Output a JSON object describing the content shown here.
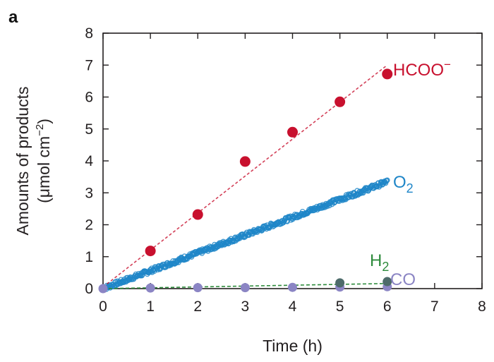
{
  "panel_label": "a",
  "chart_data": {
    "type": "scatter",
    "xlabel": "Time (h)",
    "ylabel_line1": "Amounts of products",
    "ylabel_line2_prefix": "(μmol cm",
    "ylabel_line2_exp": "−2",
    "ylabel_line2_suffix": ")",
    "xlim": [
      0,
      8
    ],
    "ylim": [
      0,
      8
    ],
    "x_ticks": [
      0,
      1,
      2,
      3,
      4,
      5,
      6,
      7,
      8
    ],
    "y_ticks": [
      0,
      1,
      2,
      3,
      4,
      5,
      6,
      7,
      8
    ],
    "x_tick_labels": [
      "0",
      "1",
      "2",
      "3",
      "4",
      "5",
      "6",
      "7",
      "8"
    ],
    "y_tick_labels": [
      "0",
      "1",
      "2",
      "3",
      "4",
      "5",
      "6",
      "7",
      "8"
    ],
    "grid": false,
    "series": [
      {
        "name": "HCOO⁻",
        "label_main": "HCOO",
        "label_sup": "−",
        "color": "#c8102e",
        "marker": "circle",
        "points": [
          {
            "x": 1,
            "y": 1.18
          },
          {
            "x": 2,
            "y": 2.32
          },
          {
            "x": 3,
            "y": 3.98
          },
          {
            "x": 4,
            "y": 4.9
          },
          {
            "x": 5,
            "y": 5.85
          },
          {
            "x": 6,
            "y": 6.72
          }
        ],
        "fit": [
          [
            0,
            0.05
          ],
          [
            6,
            7.0
          ]
        ]
      },
      {
        "name": "O₂",
        "label_main": "O",
        "label_sub": "2",
        "color": "#1f86c8",
        "marker": "continuous",
        "start": [
          0,
          0
        ],
        "end": [
          6,
          3.35
        ]
      },
      {
        "name": "H₂",
        "label_main": "H",
        "label_sub": "2",
        "color": "#2e8b3c",
        "marker_color": "#4d6b6a",
        "marker": "circle",
        "points": [
          {
            "x": 5,
            "y": 0.18
          },
          {
            "x": 6,
            "y": 0.22
          }
        ],
        "fit": [
          [
            0,
            0.0
          ],
          [
            6,
            0.16
          ]
        ]
      },
      {
        "name": "CO",
        "label_main": "CO",
        "color": "#8b85c4",
        "marker": "circle",
        "points": [
          {
            "x": 0,
            "y": 0.0
          },
          {
            "x": 1,
            "y": 0.02
          },
          {
            "x": 2,
            "y": 0.03
          },
          {
            "x": 3,
            "y": 0.03
          },
          {
            "x": 4,
            "y": 0.04
          },
          {
            "x": 5,
            "y": 0.05
          },
          {
            "x": 6,
            "y": 0.06
          }
        ]
      }
    ]
  }
}
